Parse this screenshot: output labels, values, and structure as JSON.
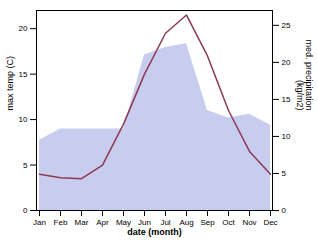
{
  "chart_data": {
    "type": "line",
    "categories": [
      "Jan",
      "Feb",
      "Mar",
      "Apr",
      "May",
      "Jun",
      "Jul",
      "Aug",
      "Sep",
      "Oct",
      "Nov",
      "Dec"
    ],
    "series": [
      {
        "type": "area",
        "axis": "y2",
        "color": "#b0b8e8",
        "values": [
          9.5,
          11.0,
          11.0,
          11.0,
          11.0,
          21.0,
          22.0,
          22.5,
          13.5,
          12.5,
          13.0,
          11.5
        ]
      },
      {
        "type": "line",
        "color": "#8B3A52",
        "values": [
          4.0,
          3.6,
          3.5,
          5.0,
          9.5,
          15.0,
          19.5,
          21.5,
          17.0,
          11.0,
          6.5,
          4.0
        ]
      }
    ],
    "xlabel": "date (month)",
    "ylabel": "max temp (C)",
    "y2label": "med. precipitation\n(kg/m2)",
    "ylim": [
      0,
      22
    ],
    "yticks": [
      0,
      5,
      10,
      15,
      20
    ],
    "y2lim": [
      0,
      27
    ],
    "y2ticks": [
      0,
      5,
      10,
      15,
      20,
      25
    ],
    "grid": false
  }
}
